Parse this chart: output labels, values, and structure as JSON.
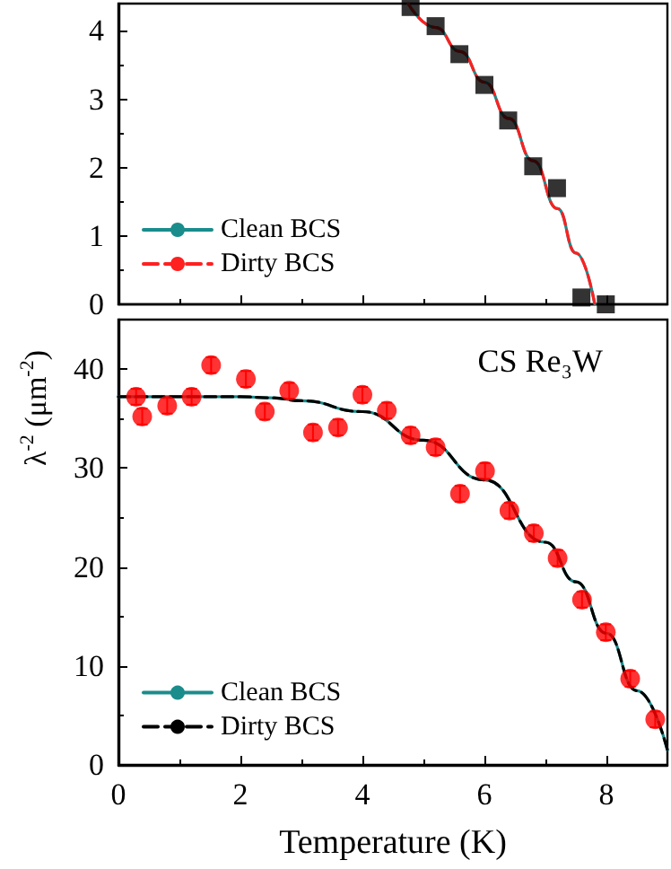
{
  "chart_data": [
    {
      "type": "scatter",
      "xlim": [
        0,
        9
      ],
      "ylim": [
        0,
        4.4
      ],
      "xticks": [
        0,
        2,
        4,
        6,
        8
      ],
      "yticks": [
        0,
        1,
        2,
        3,
        4
      ],
      "tick_labels": "y",
      "legend": "bottom left",
      "grid": false,
      "series": [
        {
          "marker": "square",
          "color": "#000000",
          "x": [
            4.79,
            5.2,
            5.59,
            6.0,
            6.39,
            6.8,
            7.19,
            7.59,
            7.99
          ],
          "values": [
            4.35,
            4.07,
            3.66,
            3.21,
            2.69,
            2.02,
            1.7,
            0.1,
            0.0
          ]
        },
        {
          "type": "line",
          "name": "Clean BCS",
          "color": "#1a8c8c",
          "line_style": "solid",
          "marker": "none",
          "x": [
            4.75,
            5.2,
            5.6,
            6.0,
            6.4,
            6.8,
            7.2,
            7.5,
            7.81
          ],
          "values": [
            4.4,
            4.05,
            3.7,
            3.25,
            2.72,
            2.1,
            1.4,
            0.75,
            0
          ]
        },
        {
          "type": "line",
          "name": "Dirty BCS",
          "color": "#ff2020",
          "line_style": "dashed",
          "marker": "none",
          "x": [
            4.75,
            5.2,
            5.6,
            6.0,
            6.4,
            6.8,
            7.2,
            7.5,
            7.81
          ],
          "values": [
            4.4,
            4.05,
            3.7,
            3.25,
            2.72,
            2.1,
            1.4,
            0.75,
            0
          ]
        }
      ]
    },
    {
      "type": "scatter",
      "xlabel": "Temperature (K)",
      "ylabel": "λ$^{-2}$ (μm$^{-2}$)",
      "annotations": [
        "CS Re₃W"
      ],
      "xlim": [
        0,
        9
      ],
      "ylim": [
        0,
        45
      ],
      "xticks": [
        0,
        2,
        4,
        6,
        8
      ],
      "yticks": [
        0,
        10,
        20,
        30,
        40
      ],
      "legend": "bottom left",
      "grid": false,
      "series": [
        {
          "marker": "circle",
          "color": "#ff0000",
          "x": [
            0.29,
            0.39,
            0.8,
            1.2,
            1.52,
            2.09,
            2.4,
            2.8,
            3.19,
            3.6,
            4.0,
            4.4,
            4.79,
            5.2,
            5.6,
            6.01,
            6.41,
            6.81,
            7.2,
            7.6,
            7.99,
            8.39,
            8.8
          ],
          "values": [
            37.2,
            35.2,
            36.3,
            37.2,
            40.4,
            39.0,
            35.7,
            37.8,
            33.6,
            34.1,
            37.4,
            35.8,
            33.3,
            32.1,
            27.4,
            29.7,
            25.7,
            23.4,
            20.9,
            16.7,
            13.4,
            8.7,
            4.6
          ],
          "errors": [
            0.8,
            0.8,
            0.8,
            0.8,
            0.8,
            0.8,
            0.8,
            0.8,
            0.8,
            0.8,
            0.8,
            0.8,
            0.8,
            0.8,
            0.8,
            0.8,
            0.8,
            0.8,
            0.8,
            0.8,
            0.8,
            0.8,
            0.8
          ]
        },
        {
          "type": "line",
          "name": "Clean BCS",
          "color": "#1a8c8c",
          "line_style": "solid",
          "marker": "none",
          "x": [
            0,
            1,
            2,
            2.5,
            3,
            4,
            5,
            6,
            7,
            7.5,
            8,
            8.5,
            9
          ],
          "values": [
            37.2,
            37.2,
            37.2,
            37.1,
            36.8,
            35.7,
            32.8,
            28.8,
            22.5,
            18.5,
            13.3,
            7.5,
            1.5
          ]
        },
        {
          "type": "line",
          "name": "Dirty BCS",
          "color": "#000000",
          "line_style": "dashed",
          "marker": "none",
          "x": [
            0,
            1,
            2,
            2.5,
            3,
            4,
            5,
            6,
            7,
            7.5,
            8,
            8.5,
            9
          ],
          "values": [
            37.2,
            37.2,
            37.2,
            37.1,
            36.8,
            35.7,
            32.8,
            28.8,
            22.5,
            18.5,
            13.3,
            7.5,
            1.5
          ]
        }
      ]
    }
  ]
}
